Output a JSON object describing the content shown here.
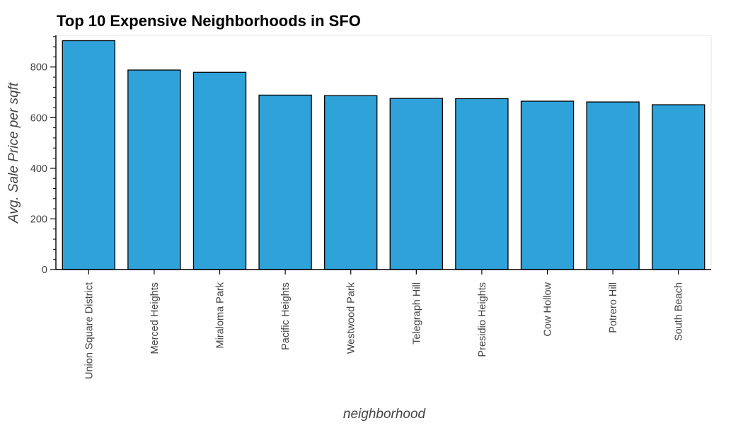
{
  "chart_data": {
    "type": "bar",
    "title": "Top 10 Expensive Neighborhoods in SFO",
    "xlabel": "neighborhood",
    "ylabel": "Avg. Sale Price per sqft",
    "categories": [
      "Union Square District",
      "Merced Heights",
      "Miraloma Park",
      "Pacific Heights",
      "Westwood Park",
      "Telegraph Hill",
      "Presidio Heights",
      "Cow Hollow",
      "Potrero Hill",
      "South Beach"
    ],
    "values": [
      904,
      788,
      779,
      689,
      687,
      676,
      675,
      665,
      662,
      651
    ],
    "ylim": [
      0,
      925
    ],
    "yticks": [
      0,
      200,
      400,
      600,
      800
    ],
    "grid": false,
    "legend": false,
    "bar_color": "#30a2da",
    "bar_edge_color": "#000000"
  }
}
